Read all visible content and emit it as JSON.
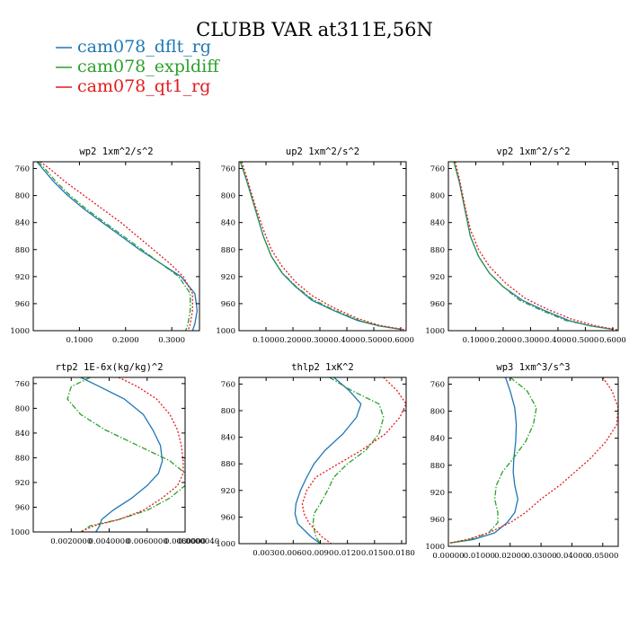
{
  "figure": {
    "title": "CLUBB VAR at311E,56N"
  },
  "colors": {
    "cam078_dflt_rg": "#1f77b4",
    "cam078_expldiff": "#2ca02c",
    "cam078_qt1_rg": "#e31a1c"
  },
  "legend": [
    {
      "label": "cam078_dflt_rg",
      "color": "#1f77b4",
      "dash": "solid"
    },
    {
      "label": "cam078_expldiff",
      "color": "#2ca02c",
      "dash": "dashdot"
    },
    {
      "label": "cam078_qt1_rg",
      "color": "#e31a1c",
      "dash": "dotted"
    }
  ],
  "chart_data": [
    {
      "type": "line",
      "title": "wp2   1xm^2/s^2",
      "ylim": [
        1000,
        750
      ],
      "yticks": [
        760,
        800,
        840,
        880,
        920,
        960,
        1000
      ],
      "ytick_labels": [
        "760",
        "800",
        "840",
        "880",
        "920",
        "960",
        "1000"
      ],
      "xlim": [
        0,
        0.36
      ],
      "xticks": [
        0.1,
        0.2,
        0.3
      ],
      "xtick_labels": [
        "0.1000",
        "0.2000",
        "0.3000"
      ],
      "series": [
        {
          "name": "cam078_dflt_rg",
          "x": [
            0.008,
            0.02,
            0.045,
            0.075,
            0.11,
            0.15,
            0.19,
            0.23,
            0.275,
            0.32,
            0.35,
            0.355,
            0.35,
            0.345
          ],
          "y": [
            750,
            760,
            780,
            800,
            820,
            840,
            860,
            880,
            900,
            920,
            945,
            970,
            990,
            1000
          ]
        },
        {
          "name": "cam078_expldiff",
          "x": [
            0.01,
            0.025,
            0.05,
            0.08,
            0.115,
            0.155,
            0.195,
            0.235,
            0.275,
            0.315,
            0.34,
            0.34,
            0.335,
            0.33
          ],
          "y": [
            750,
            760,
            780,
            800,
            820,
            840,
            860,
            880,
            900,
            920,
            945,
            970,
            990,
            1000
          ]
        },
        {
          "name": "cam078_qt1_rg",
          "x": [
            0.015,
            0.035,
            0.07,
            0.11,
            0.15,
            0.19,
            0.225,
            0.26,
            0.295,
            0.325,
            0.345,
            0.345,
            0.34,
            0.335
          ],
          "y": [
            750,
            760,
            780,
            800,
            820,
            840,
            860,
            880,
            900,
            920,
            945,
            970,
            990,
            1000
          ]
        }
      ]
    },
    {
      "type": "line",
      "title": "up2   1xm^2/s^2",
      "ylim": [
        1000,
        750
      ],
      "yticks": [
        760,
        800,
        840,
        880,
        920,
        960,
        1000
      ],
      "ytick_labels": [
        "760",
        "800",
        "840",
        "880",
        "920",
        "960",
        "1000"
      ],
      "xlim": [
        0,
        0.62
      ],
      "xticks": [
        0.1,
        0.2,
        0.3,
        0.4,
        0.5,
        0.6
      ],
      "xtick_labels": [
        "0.1000",
        "0.2000",
        "0.3000",
        "0.4000",
        "0.5000",
        "0.6000"
      ],
      "series": [
        {
          "name": "cam078_dflt_rg",
          "x": [
            0.005,
            0.03,
            0.06,
            0.09,
            0.12,
            0.16,
            0.21,
            0.27,
            0.35,
            0.44,
            0.52,
            0.6
          ],
          "y": [
            750,
            780,
            820,
            860,
            890,
            915,
            935,
            955,
            970,
            985,
            993,
            998
          ]
        },
        {
          "name": "cam078_expldiff",
          "x": [
            0.005,
            0.03,
            0.06,
            0.09,
            0.12,
            0.16,
            0.21,
            0.27,
            0.35,
            0.44,
            0.52,
            0.6
          ],
          "y": [
            750,
            780,
            820,
            860,
            890,
            914,
            934,
            953,
            969,
            984,
            993,
            998
          ]
        },
        {
          "name": "cam078_qt1_rg",
          "x": [
            0.01,
            0.03,
            0.06,
            0.09,
            0.12,
            0.16,
            0.21,
            0.27,
            0.35,
            0.44,
            0.52,
            0.62
          ],
          "y": [
            750,
            775,
            815,
            850,
            880,
            905,
            928,
            948,
            966,
            982,
            992,
            999
          ]
        }
      ]
    },
    {
      "type": "line",
      "title": "vp2   1xm^2/s^2",
      "ylim": [
        1000,
        750
      ],
      "yticks": [
        760,
        800,
        840,
        880,
        920,
        960,
        1000
      ],
      "ytick_labels": [
        "760",
        "800",
        "840",
        "880",
        "920",
        "960",
        "1000"
      ],
      "xlim": [
        0,
        0.62
      ],
      "xticks": [
        0.1,
        0.2,
        0.3,
        0.4,
        0.5,
        0.6
      ],
      "xtick_labels": [
        "0.1000",
        "0.2000",
        "0.3000",
        "0.4000",
        "0.5000",
        "0.6000"
      ],
      "series": [
        {
          "name": "cam078_dflt_rg",
          "x": [
            0.02,
            0.04,
            0.06,
            0.08,
            0.11,
            0.15,
            0.2,
            0.27,
            0.35,
            0.44,
            0.52,
            0.6
          ],
          "y": [
            750,
            780,
            820,
            860,
            890,
            915,
            935,
            955,
            970,
            985,
            993,
            998
          ]
        },
        {
          "name": "cam078_expldiff",
          "x": [
            0.02,
            0.04,
            0.06,
            0.08,
            0.11,
            0.15,
            0.2,
            0.26,
            0.34,
            0.43,
            0.52,
            0.6
          ],
          "y": [
            750,
            780,
            820,
            860,
            890,
            915,
            935,
            955,
            970,
            985,
            993,
            998
          ]
        },
        {
          "name": "cam078_qt1_rg",
          "x": [
            0.025,
            0.04,
            0.06,
            0.08,
            0.11,
            0.15,
            0.21,
            0.28,
            0.36,
            0.45,
            0.54,
            0.62
          ],
          "y": [
            750,
            775,
            815,
            850,
            880,
            905,
            930,
            952,
            968,
            983,
            993,
            999
          ]
        }
      ]
    },
    {
      "type": "line",
      "title": "rtp2   1E-6x(kg/kg)^2",
      "ylim": [
        1000,
        750
      ],
      "yticks": [
        760,
        800,
        840,
        880,
        920,
        960,
        1000
      ],
      "ytick_labels": [
        "760",
        "800",
        "840",
        "880",
        "920",
        "960",
        "1000"
      ],
      "xlim": [
        0,
        8e-05
      ],
      "xticks": [
        2e-05,
        4e-05,
        6e-05,
        8e-05
      ],
      "xtick_labels": [
        "0.00200000",
        "0.00400000",
        "0.00600000",
        "0.00800000"
      ],
      "xtick_labels_full": [
        "0.0020000",
        "0.0040000",
        "0.0060000",
        "0.0080000",
        "0.0000040"
      ],
      "series": [
        {
          "name": "cam078_dflt_rg",
          "x": [
            2.5e-05,
            3.5e-05,
            4.8e-05,
            5.8e-05,
            6.3e-05,
            6.7e-05,
            6.8e-05,
            6.6e-05,
            6e-05,
            5.2e-05,
            4.2e-05,
            3.6e-05,
            3.5e-05,
            3.3e-05
          ],
          "y": [
            750,
            765,
            785,
            810,
            835,
            860,
            885,
            905,
            925,
            945,
            965,
            980,
            990,
            1000
          ]
        },
        {
          "name": "cam078_expldiff",
          "x": [
            3e-05,
            2e-05,
            1.8e-05,
            2.5e-05,
            3.8e-05,
            5.5e-05,
            7.2e-05,
            8e-05,
            8e-05,
            7.2e-05,
            6e-05,
            4.5e-05,
            3e-05,
            2.5e-05
          ],
          "y": [
            750,
            765,
            785,
            810,
            835,
            860,
            885,
            905,
            925,
            945,
            965,
            980,
            990,
            1000
          ]
        },
        {
          "name": "cam078_qt1_rg",
          "x": [
            4.5e-05,
            5.5e-05,
            6.5e-05,
            7.2e-05,
            7.6e-05,
            7.8e-05,
            7.9e-05,
            7.9e-05,
            7.6e-05,
            6.8e-05,
            5.8e-05,
            4.5e-05,
            3.2e-05,
            2.5e-05
          ],
          "y": [
            750,
            765,
            785,
            810,
            835,
            860,
            885,
            905,
            925,
            945,
            965,
            980,
            990,
            1000
          ]
        }
      ]
    },
    {
      "type": "line",
      "title": "thlp2   1xK^2",
      "ylim": [
        1000,
        750
      ],
      "yticks": [
        760,
        800,
        840,
        880,
        920,
        960,
        1000
      ],
      "ytick_labels": [
        "760",
        "800",
        "840",
        "880",
        "920",
        "960",
        "1000"
      ],
      "xlim": [
        0,
        0.0185
      ],
      "xticks": [
        0.003,
        0.006,
        0.009,
        0.012,
        0.015,
        0.018
      ],
      "xtick_labels": [
        "0.0030",
        "0.0060",
        "0.0090",
        "0.0120",
        "0.0150",
        "0.0180"
      ],
      "series": [
        {
          "name": "cam078_dflt_rg",
          "x": [
            0.0105,
            0.0122,
            0.0135,
            0.013,
            0.0115,
            0.0095,
            0.0083,
            0.0075,
            0.0068,
            0.0063,
            0.0062,
            0.0065,
            0.008,
            0.009
          ],
          "y": [
            750,
            770,
            790,
            810,
            835,
            860,
            880,
            900,
            920,
            940,
            955,
            970,
            990,
            1000
          ]
        },
        {
          "name": "cam078_expldiff",
          "x": [
            0.01,
            0.0125,
            0.0155,
            0.016,
            0.0155,
            0.014,
            0.012,
            0.0105,
            0.0098,
            0.009,
            0.0083,
            0.0082,
            0.0085,
            0.009
          ],
          "y": [
            750,
            770,
            790,
            810,
            835,
            860,
            880,
            900,
            920,
            940,
            955,
            970,
            990,
            1000
          ]
        },
        {
          "name": "cam078_qt1_rg",
          "x": [
            0.016,
            0.0175,
            0.0185,
            0.0178,
            0.0162,
            0.0135,
            0.011,
            0.0085,
            0.0075,
            0.007,
            0.0072,
            0.0078,
            0.0092,
            0.0102
          ],
          "y": [
            750,
            770,
            790,
            810,
            835,
            860,
            880,
            900,
            920,
            940,
            955,
            970,
            990,
            1000
          ]
        }
      ]
    },
    {
      "type": "line",
      "title": "wp3   1xm^3/s^3",
      "ylim": [
        1000,
        750
      ],
      "yticks": [
        760,
        800,
        840,
        880,
        920,
        960,
        1000
      ],
      "ytick_labels": [
        "760",
        "800",
        "840",
        "880",
        "920",
        "960",
        "1000"
      ],
      "xlim": [
        0,
        0.055
      ],
      "xticks": [
        0,
        0.01,
        0.02,
        0.03,
        0.04,
        0.05
      ],
      "xtick_labels": [
        "0.00000",
        "0.01000",
        "0.02000",
        "0.03000",
        "0.04000",
        "0.05000"
      ],
      "series": [
        {
          "name": "cam078_dflt_rg",
          "x": [
            0.0185,
            0.02,
            0.0215,
            0.022,
            0.0218,
            0.0212,
            0.021,
            0.0215,
            0.0225,
            0.0215,
            0.019,
            0.015,
            0.008,
            0.0005
          ],
          "y": [
            750,
            770,
            795,
            820,
            845,
            870,
            890,
            910,
            930,
            950,
            965,
            980,
            990,
            995
          ]
        },
        {
          "name": "cam078_expldiff",
          "x": [
            0.02,
            0.0255,
            0.0285,
            0.0275,
            0.025,
            0.021,
            0.0175,
            0.0155,
            0.015,
            0.016,
            0.016,
            0.013,
            0.007,
            0.0005
          ],
          "y": [
            750,
            770,
            795,
            820,
            845,
            870,
            890,
            910,
            930,
            950,
            965,
            980,
            990,
            995
          ]
        },
        {
          "name": "cam078_qt1_rg",
          "x": [
            0.05,
            0.053,
            0.055,
            0.0545,
            0.051,
            0.046,
            0.041,
            0.036,
            0.03,
            0.025,
            0.02,
            0.013,
            0.006,
            0.0005
          ],
          "y": [
            750,
            770,
            795,
            820,
            845,
            870,
            890,
            910,
            930,
            950,
            965,
            980,
            990,
            995
          ]
        }
      ]
    }
  ]
}
